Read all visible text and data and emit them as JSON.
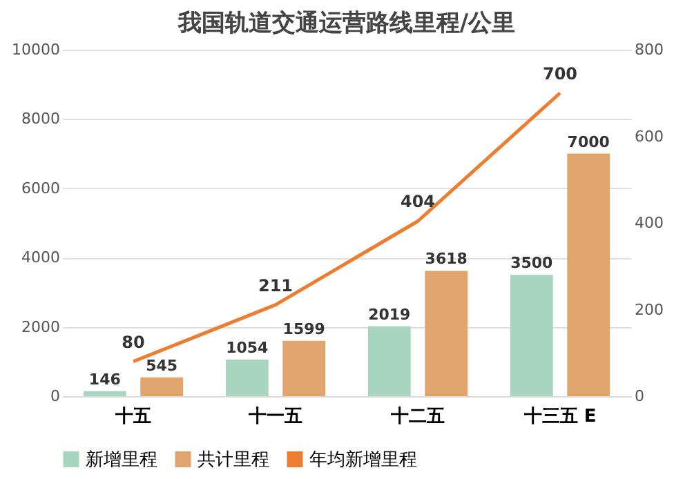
{
  "chart_data": {
    "type": "bar",
    "title": "我国轨道交通运营路线里程/公里",
    "categories": [
      "十五",
      "十一五",
      "十二五",
      "十三五 E"
    ],
    "series": [
      {
        "name": "新增里程",
        "color": "#a8d5c0",
        "values": [
          146,
          1054,
          2019,
          3500
        ]
      },
      {
        "name": "共计里程",
        "color": "#e2a46e",
        "values": [
          545,
          1599,
          3618,
          7000
        ]
      },
      {
        "name": "年均新增里程",
        "color": "#ed7d31",
        "type": "line",
        "axis": "y2",
        "values": [
          80,
          211,
          404,
          700
        ]
      }
    ],
    "ylim": [
      0,
      10000
    ],
    "yticks": [
      0,
      2000,
      4000,
      6000,
      8000,
      10000
    ],
    "y2lim": [
      0,
      800
    ],
    "y2ticks": [
      0,
      200,
      400,
      600,
      800
    ],
    "grid": "y",
    "legend": "bottom",
    "data_labels": true
  }
}
